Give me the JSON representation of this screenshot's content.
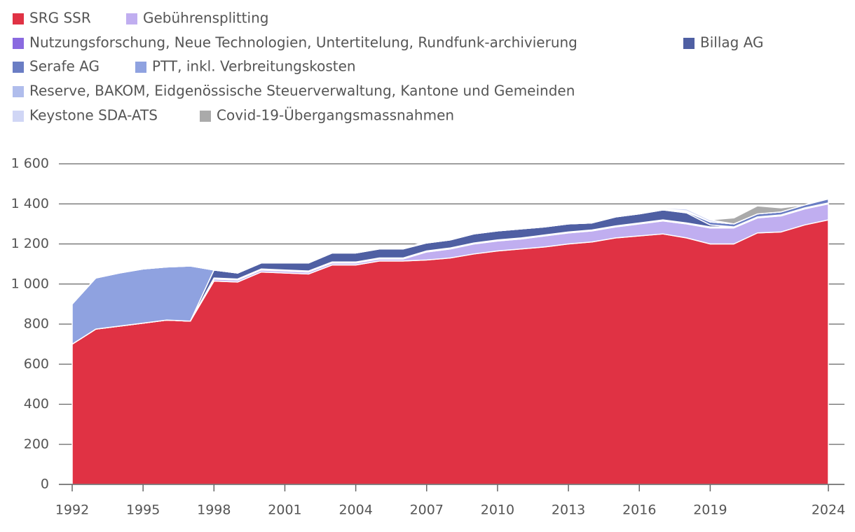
{
  "chart_data": {
    "type": "area",
    "stacked": true,
    "x": [
      1992,
      1993,
      1994,
      1995,
      1996,
      1997,
      1998,
      1999,
      2000,
      2001,
      2002,
      2003,
      2004,
      2005,
      2006,
      2007,
      2008,
      2009,
      2010,
      2011,
      2012,
      2013,
      2014,
      2015,
      2016,
      2017,
      2018,
      2019,
      2020,
      2021,
      2022,
      2023,
      2024
    ],
    "series": [
      {
        "name": "SRG SSR",
        "color": "#e03244",
        "values": [
          700,
          775,
          790,
          805,
          820,
          815,
          1015,
          1010,
          1060,
          1055,
          1050,
          1095,
          1095,
          1115,
          1115,
          1120,
          1130,
          1150,
          1165,
          1175,
          1185,
          1200,
          1210,
          1230,
          1240,
          1250,
          1230,
          1200,
          1200,
          1255,
          1260,
          1295,
          1320
        ]
      },
      {
        "name": "Gebührensplitting",
        "color": "#c0aef0",
        "values": [
          0,
          0,
          0,
          0,
          0,
          0,
          10,
          10,
          10,
          10,
          10,
          10,
          10,
          10,
          10,
          40,
          45,
          50,
          50,
          50,
          55,
          55,
          55,
          55,
          60,
          65,
          70,
          80,
          80,
          75,
          80,
          80,
          80
        ]
      },
      {
        "name": "Nutzungsforschung, Neue Technologien, Untertitelung, Rundfunk-archivierung",
        "color": "#8a6ae0",
        "values": [
          0,
          0,
          0,
          0,
          0,
          0,
          5,
          5,
          5,
          5,
          5,
          5,
          5,
          5,
          5,
          5,
          5,
          5,
          5,
          5,
          5,
          5,
          5,
          5,
          5,
          5,
          5,
          5,
          5,
          5,
          5,
          5,
          5
        ]
      },
      {
        "name": "Billag AG",
        "color": "#4f5fa3",
        "values": [
          0,
          0,
          0,
          0,
          0,
          0,
          40,
          30,
          30,
          35,
          40,
          45,
          45,
          45,
          45,
          40,
          40,
          45,
          45,
          45,
          40,
          40,
          35,
          45,
          45,
          50,
          50,
          10,
          0,
          0,
          0,
          0,
          0
        ]
      },
      {
        "name": "Serafe AG",
        "color": "#6a7dc4",
        "values": [
          0,
          0,
          0,
          0,
          0,
          0,
          0,
          0,
          0,
          0,
          0,
          0,
          0,
          0,
          0,
          0,
          0,
          0,
          0,
          0,
          0,
          0,
          0,
          0,
          0,
          0,
          5,
          15,
          15,
          15,
          15,
          15,
          20
        ]
      },
      {
        "name": "PTT, inkl. Verbreitungskosten",
        "color": "#8fa2e0",
        "values": [
          200,
          255,
          265,
          270,
          265,
          275,
          0,
          0,
          0,
          0,
          0,
          0,
          0,
          0,
          0,
          0,
          0,
          0,
          0,
          0,
          0,
          0,
          0,
          0,
          0,
          0,
          0,
          0,
          0,
          0,
          0,
          0,
          0
        ]
      },
      {
        "name": "Reserve, BAKOM, Eidgenössische Steuerverwaltung, Kantone und Gemeinden",
        "color": "#b0bdec",
        "values": [
          0,
          0,
          0,
          0,
          0,
          0,
          0,
          0,
          0,
          5,
          5,
          5,
          5,
          5,
          5,
          5,
          5,
          5,
          5,
          5,
          5,
          5,
          5,
          5,
          5,
          5,
          5,
          0,
          0,
          0,
          0,
          0,
          0
        ]
      },
      {
        "name": "Keystone SDA-ATS",
        "color": "#d0d6f5",
        "values": [
          0,
          0,
          0,
          0,
          0,
          0,
          0,
          0,
          0,
          0,
          0,
          0,
          0,
          0,
          0,
          0,
          0,
          0,
          0,
          0,
          0,
          0,
          0,
          0,
          0,
          5,
          10,
          10,
          0,
          0,
          0,
          0,
          0
        ]
      },
      {
        "name": "Covid-19-Übergangsmassnahmen",
        "color": "#aaaaaa",
        "values": [
          0,
          0,
          0,
          0,
          0,
          0,
          0,
          0,
          0,
          0,
          0,
          0,
          0,
          0,
          0,
          0,
          0,
          0,
          0,
          0,
          0,
          0,
          0,
          0,
          0,
          0,
          0,
          0,
          30,
          40,
          20,
          0,
          0
        ]
      }
    ],
    "xlim": [
      1992,
      2024
    ],
    "xticks": [
      1992,
      1995,
      1998,
      2001,
      2004,
      2007,
      2010,
      2013,
      2016,
      2019,
      2024
    ],
    "ylim": [
      0,
      1600
    ],
    "yticks": [
      0,
      200,
      400,
      600,
      800,
      {
        "value": 1000,
        "label": "1 000"
      },
      {
        "value": 1200,
        "label": "1 200"
      },
      {
        "value": 1400,
        "label": "1 400"
      },
      {
        "value": 1600,
        "label": "1 600"
      }
    ],
    "grid": true
  }
}
